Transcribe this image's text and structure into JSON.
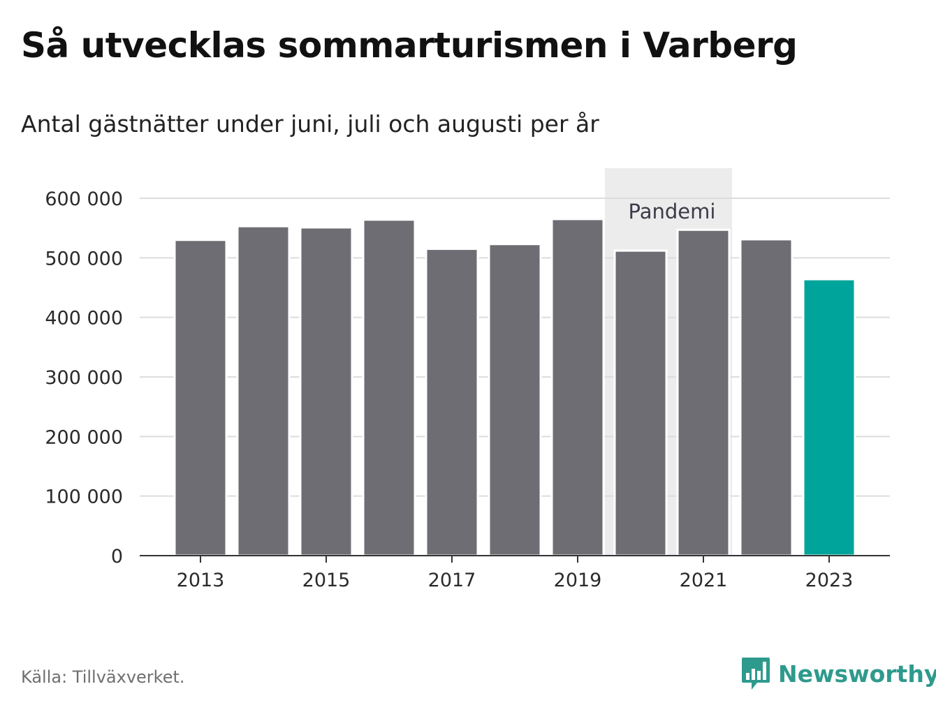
{
  "header": {
    "title": "Så utvecklas sommarturismen i Varberg",
    "subtitle": "Antal gästnätter under juni, juli och augusti per år"
  },
  "footer": {
    "source": "Källa: Tillväxverket.",
    "brand": "Newsworthy",
    "brand_icon": "bar-chart-speech-bubble-icon",
    "brand_color": "#2e9a8d"
  },
  "colors": {
    "bar": "#6e6d73",
    "highlight": "#00a49a",
    "shade": "#ececec",
    "grid": "#dcdcdc",
    "axis": "#333333"
  },
  "chart_data": {
    "type": "bar",
    "title": "Så utvecklas sommarturismen i Varberg",
    "subtitle": "Antal gästnätter under juni, juli och augusti per år",
    "categories": [
      "2013",
      "2014",
      "2015",
      "2016",
      "2017",
      "2018",
      "2019",
      "2020",
      "2021",
      "2022",
      "2023"
    ],
    "values": [
      530000,
      553000,
      551000,
      564000,
      515000,
      523000,
      565000,
      512000,
      547000,
      531000,
      464000
    ],
    "highlight_category": "2023",
    "ylim": [
      0,
      600000
    ],
    "yticks": [
      0,
      100000,
      200000,
      300000,
      400000,
      500000,
      600000
    ],
    "ytick_labels": [
      "0",
      "100 000",
      "200 000",
      "300 000",
      "400 000",
      "500 000",
      "600 000"
    ],
    "xtick_labels": [
      "2013",
      "2015",
      "2017",
      "2019",
      "2021",
      "2023"
    ],
    "grid": true,
    "annotation": {
      "label": "Pandemi",
      "from": "2020",
      "to": "2021"
    }
  }
}
